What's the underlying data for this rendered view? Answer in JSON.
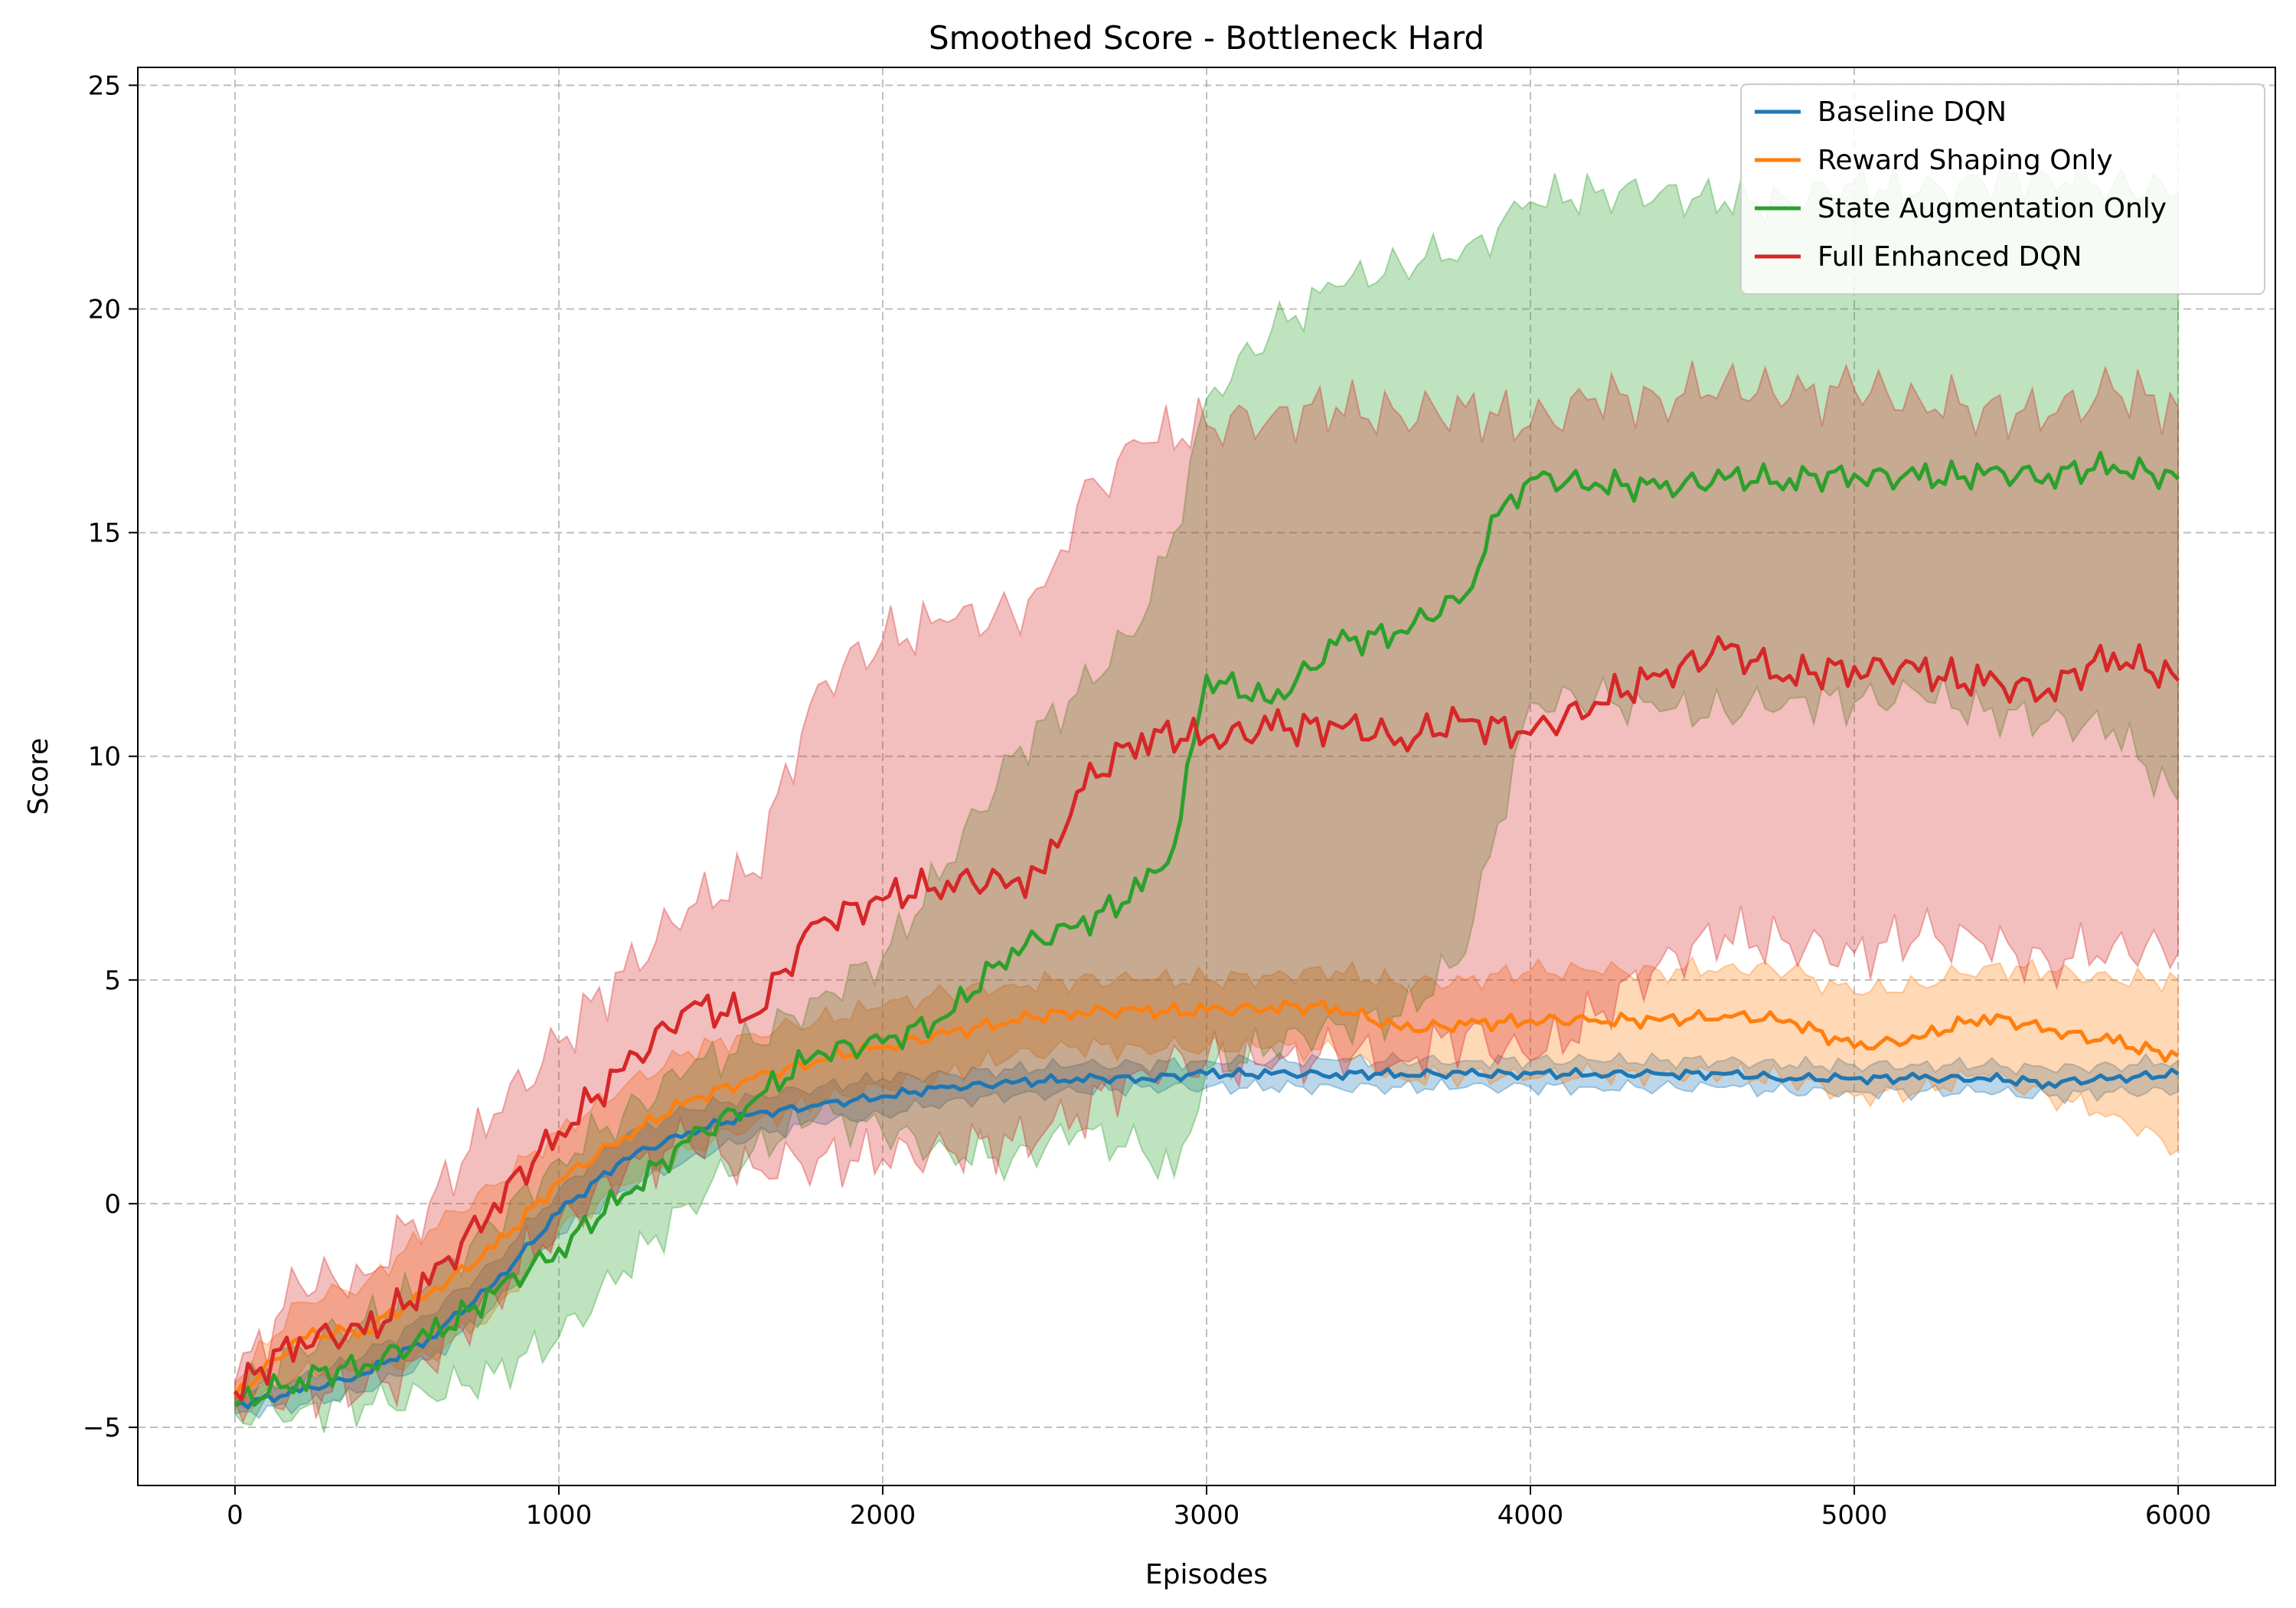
{
  "chart_data": {
    "type": "line",
    "title": "Smoothed Score - Bottleneck Hard",
    "xlabel": "Episodes",
    "ylabel": "Score",
    "xlim": [
      -300,
      6300
    ],
    "ylim": [
      -6.3,
      25.4
    ],
    "xticks": [
      0,
      1000,
      2000,
      3000,
      4000,
      5000,
      6000
    ],
    "yticks": [
      -5,
      0,
      5,
      10,
      15,
      20,
      25
    ],
    "grid": true,
    "legend_position": "top-right",
    "series": [
      {
        "name": "Baseline DQN",
        "color": "#1f77b4",
        "x": [
          0,
          200,
          400,
          600,
          800,
          1000,
          1200,
          1400,
          1600,
          1800,
          2000,
          2200,
          2400,
          2600,
          2800,
          3000,
          3200,
          3400,
          3600,
          3800,
          4000,
          4200,
          4400,
          4600,
          4800,
          5000,
          5200,
          5400,
          5600,
          5800,
          6000
        ],
        "y": [
          -4.5,
          -4.2,
          -3.8,
          -3.0,
          -1.8,
          -0.2,
          1.0,
          1.6,
          2.0,
          2.2,
          2.4,
          2.6,
          2.7,
          2.8,
          2.8,
          2.9,
          2.9,
          2.9,
          2.9,
          2.9,
          2.9,
          2.9,
          2.9,
          2.9,
          2.8,
          2.8,
          2.8,
          2.8,
          2.7,
          2.8,
          2.9
        ],
        "band_low": [
          -4.7,
          -4.5,
          -4.2,
          -3.5,
          -2.3,
          -0.7,
          0.3,
          1.0,
          1.5,
          1.8,
          2.0,
          2.3,
          2.4,
          2.5,
          2.6,
          2.6,
          2.6,
          2.6,
          2.6,
          2.6,
          2.6,
          2.6,
          2.6,
          2.6,
          2.5,
          2.5,
          2.5,
          2.5,
          2.4,
          2.5,
          2.5
        ],
        "band_high": [
          -4.3,
          -3.9,
          -3.4,
          -2.5,
          -1.3,
          0.3,
          1.5,
          2.1,
          2.4,
          2.6,
          2.8,
          2.9,
          3.0,
          3.1,
          3.1,
          3.2,
          3.2,
          3.2,
          3.2,
          3.2,
          3.2,
          3.2,
          3.2,
          3.2,
          3.1,
          3.1,
          3.1,
          3.1,
          3.0,
          3.1,
          3.2
        ]
      },
      {
        "name": "Reward Shaping Only",
        "color": "#ff7f0e",
        "x": [
          0,
          200,
          400,
          600,
          800,
          1000,
          1200,
          1400,
          1600,
          1800,
          2000,
          2200,
          2400,
          2600,
          2800,
          3000,
          3200,
          3400,
          3600,
          3800,
          4000,
          4200,
          4400,
          4600,
          4800,
          5000,
          5200,
          5400,
          5600,
          5800,
          6000
        ],
        "y": [
          -4.3,
          -3.0,
          -2.8,
          -2.0,
          -1.0,
          0.5,
          1.5,
          2.3,
          2.8,
          3.2,
          3.5,
          3.8,
          4.1,
          4.3,
          4.3,
          4.3,
          4.4,
          4.4,
          3.9,
          4.0,
          4.1,
          4.1,
          4.1,
          4.2,
          4.1,
          3.5,
          3.7,
          4.2,
          3.9,
          3.6,
          3.3
        ],
        "band_low": [
          -4.6,
          -3.8,
          -3.8,
          -3.4,
          -2.4,
          -0.6,
          0.4,
          1.2,
          1.8,
          2.3,
          2.6,
          2.9,
          3.3,
          3.5,
          3.5,
          3.5,
          3.5,
          3.4,
          2.8,
          2.9,
          2.8,
          2.9,
          2.9,
          2.9,
          2.8,
          2.4,
          2.5,
          2.9,
          2.4,
          2.0,
          1.2
        ],
        "band_high": [
          -4.0,
          -2.2,
          -1.8,
          -0.6,
          0.4,
          1.6,
          2.6,
          3.4,
          3.8,
          4.1,
          4.4,
          4.7,
          4.9,
          5.0,
          5.0,
          5.0,
          5.1,
          5.2,
          4.9,
          5.0,
          5.2,
          5.2,
          5.2,
          5.3,
          5.2,
          4.7,
          4.9,
          5.3,
          5.2,
          5.0,
          5.0
        ]
      },
      {
        "name": "State Augmentation Only",
        "color": "#2ca02c",
        "x": [
          0,
          200,
          400,
          600,
          800,
          1000,
          1200,
          1400,
          1600,
          1800,
          2000,
          2200,
          2400,
          2600,
          2800,
          2900,
          3000,
          3200,
          3400,
          3600,
          3800,
          3900,
          4000,
          4200,
          4400,
          4600,
          4800,
          5000,
          5200,
          5400,
          5600,
          5800,
          6000
        ],
        "y": [
          -4.5,
          -3.9,
          -3.6,
          -3.0,
          -2.0,
          -1.0,
          0.2,
          1.4,
          2.3,
          3.4,
          3.6,
          4.2,
          5.7,
          6.2,
          7.0,
          8.0,
          11.8,
          11.2,
          12.5,
          12.8,
          13.6,
          15.4,
          16.2,
          16.1,
          16.0,
          16.2,
          16.2,
          16.3,
          16.2,
          16.3,
          16.3,
          16.5,
          16.2
        ],
        "band_low": [
          -4.7,
          -4.6,
          -4.5,
          -4.3,
          -3.8,
          -3.0,
          -1.5,
          0.0,
          1.2,
          2.0,
          1.6,
          1.2,
          1.0,
          1.6,
          1.2,
          0.6,
          3.0,
          3.5,
          4.0,
          4.2,
          5.6,
          8.5,
          11.2,
          11.3,
          11.0,
          11.0,
          11.3,
          11.2,
          11.4,
          11.0,
          10.8,
          10.6,
          9.0
        ],
        "band_high": [
          -4.3,
          -3.2,
          -2.6,
          -1.8,
          -0.5,
          1.0,
          2.0,
          3.0,
          3.6,
          4.6,
          5.5,
          7.6,
          10.0,
          11.4,
          13.0,
          15.0,
          18.0,
          19.5,
          20.5,
          21.0,
          21.4,
          21.8,
          22.4,
          22.6,
          22.6,
          22.4,
          22.4,
          22.8,
          22.6,
          22.8,
          23.0,
          22.8,
          22.6
        ]
      },
      {
        "name": "Full Enhanced DQN",
        "color": "#d62728",
        "x": [
          0,
          200,
          400,
          600,
          800,
          1000,
          1200,
          1400,
          1600,
          1800,
          2000,
          2200,
          2400,
          2500,
          2600,
          2800,
          3000,
          3200,
          3400,
          3600,
          3800,
          4000,
          4200,
          4400,
          4600,
          4800,
          5000,
          5200,
          5400,
          5600,
          5800,
          6000
        ],
        "y": [
          -4.2,
          -3.0,
          -2.9,
          -1.8,
          0.0,
          1.6,
          3.0,
          4.4,
          4.2,
          6.3,
          6.8,
          7.2,
          7.2,
          7.4,
          9.2,
          10.5,
          10.4,
          10.6,
          10.7,
          10.4,
          10.8,
          10.5,
          11.2,
          11.8,
          12.4,
          11.8,
          12.0,
          11.9,
          11.6,
          11.5,
          12.3,
          11.7
        ],
        "band_low": [
          -4.4,
          -4.2,
          -4.2,
          -3.6,
          -2.0,
          -0.4,
          0.6,
          1.4,
          0.8,
          1.0,
          1.0,
          1.2,
          1.4,
          1.6,
          2.0,
          3.0,
          3.2,
          3.0,
          3.4,
          3.2,
          3.8,
          3.2,
          4.2,
          5.4,
          6.0,
          5.8,
          5.6,
          6.0,
          5.8,
          5.4,
          5.8,
          5.6
        ],
        "band_high": [
          -4.0,
          -1.8,
          -1.6,
          0.0,
          2.0,
          3.6,
          5.2,
          6.6,
          7.4,
          11.6,
          12.6,
          13.0,
          13.2,
          13.8,
          15.6,
          17.0,
          17.4,
          17.6,
          17.8,
          17.6,
          17.8,
          17.4,
          18.0,
          18.0,
          18.4,
          18.0,
          18.2,
          18.0,
          17.8,
          17.6,
          18.2,
          17.8
        ]
      }
    ]
  }
}
